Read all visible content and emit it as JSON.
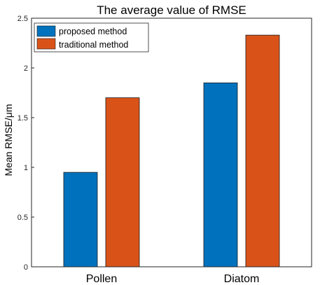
{
  "chart_data": {
    "type": "bar",
    "title": "The average value of RMSE",
    "xlabel": "",
    "ylabel": "Mean RMSE/μm",
    "categories": [
      "Pollen",
      "Diatom"
    ],
    "series": [
      {
        "name": "proposed method",
        "values": [
          0.95,
          1.85
        ],
        "color": "#0072BD"
      },
      {
        "name": "traditional method",
        "values": [
          1.7,
          2.33
        ],
        "color": "#D95319"
      }
    ],
    "ylim": [
      0,
      2.5
    ],
    "yticks": [
      "0",
      "0.5",
      "1",
      "1.5",
      "2",
      "2.5"
    ],
    "grid": false,
    "legend_position": "top-left"
  }
}
